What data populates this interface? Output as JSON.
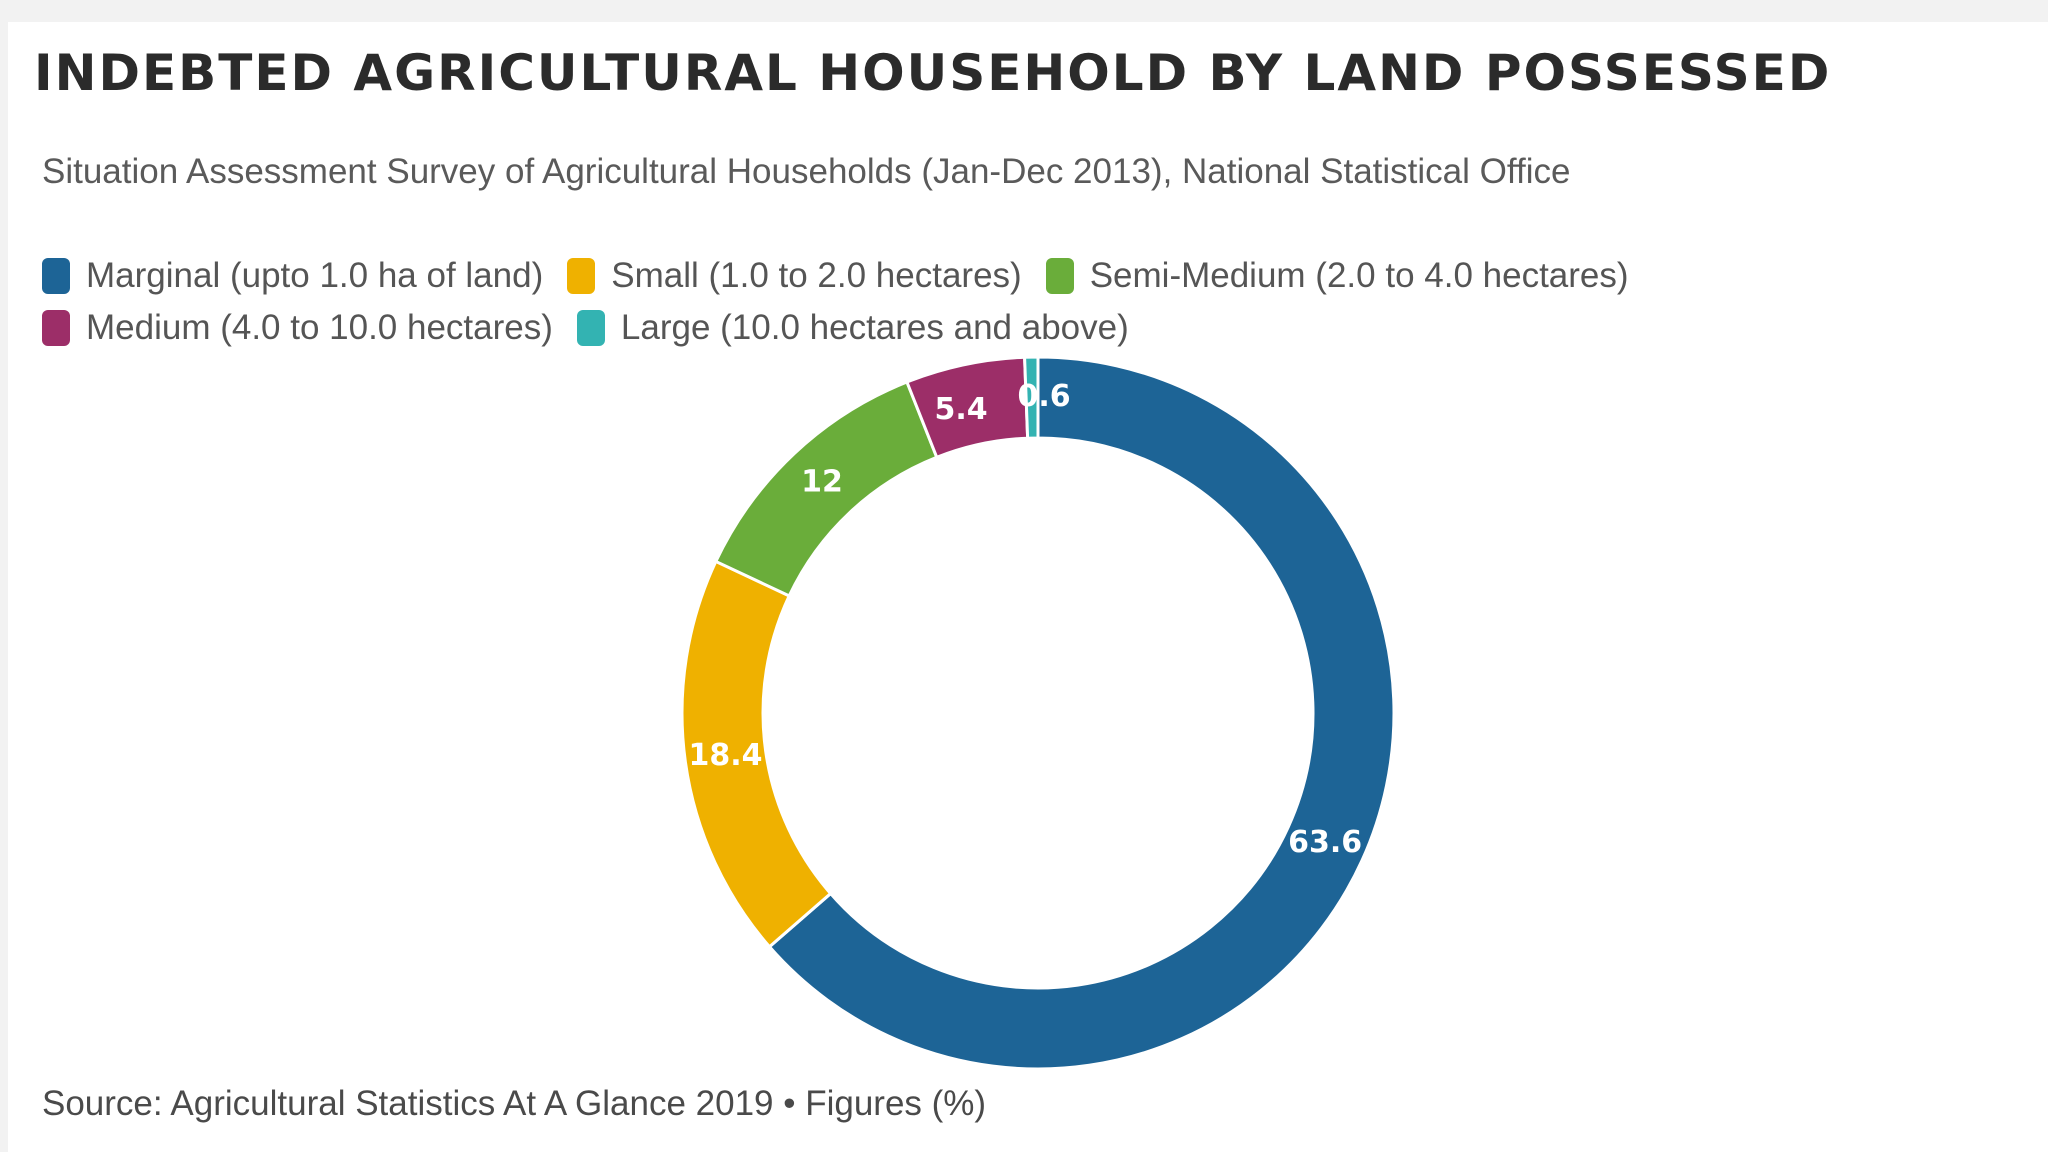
{
  "chart_data": {
    "type": "pie",
    "title": "INDEBTED AGRICULTURAL HOUSEHOLD BY LAND POSSESSED",
    "subtitle": "Situation Assessment Survey of Agricultural Households (Jan-Dec 2013), National Statistical Office",
    "source": "Source: Agricultural Statistics At A Glance 2019 • Figures (%)",
    "legend_position": "top",
    "donut": true,
    "categories": [
      "Marginal (upto 1.0 ha of land)",
      "Small (1.0 to 2.0 hectares)",
      "Semi-Medium (2.0 to 4.0 hectares)",
      "Medium (4.0 to 10.0 hectares)",
      "Large (10.0 hectares and above)"
    ],
    "values": [
      63.6,
      18.4,
      12,
      5.4,
      0.6
    ],
    "data_labels": [
      "63.6",
      "18.4",
      "12",
      "5.4",
      "0.6"
    ],
    "colors": [
      "#1d6496",
      "#efb100",
      "#6aad3a",
      "#9c2e68",
      "#33b3b2"
    ]
  }
}
